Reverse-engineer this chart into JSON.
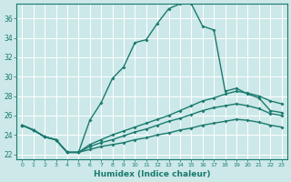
{
  "xlabel": "Humidex (Indice chaleur)",
  "x_ticks": [
    0,
    1,
    2,
    3,
    4,
    5,
    6,
    7,
    8,
    9,
    10,
    11,
    12,
    13,
    14,
    15,
    16,
    17,
    18,
    19,
    20,
    21,
    22,
    23
  ],
  "xlim": [
    -0.5,
    23.5
  ],
  "ylim": [
    21.5,
    37.5
  ],
  "y_ticks": [
    22,
    24,
    26,
    28,
    30,
    32,
    34,
    36
  ],
  "bg_color": "#cce8e8",
  "grid_color": "#b0d4d4",
  "line_color": "#1a7a6e",
  "lines": [
    {
      "x": [
        0,
        1,
        2,
        3,
        4,
        5,
        6,
        7,
        8,
        9,
        10,
        11,
        12,
        13,
        14,
        15,
        16,
        17,
        18,
        19,
        20,
        21,
        22,
        23
      ],
      "y": [
        25.0,
        24.5,
        23.8,
        23.5,
        22.2,
        22.2,
        25.5,
        27.3,
        29.8,
        31.0,
        33.5,
        33.8,
        35.5,
        37.0,
        37.5,
        37.5,
        35.2,
        34.8,
        28.5,
        28.8,
        28.2,
        27.8,
        26.5,
        26.3
      ]
    },
    {
      "x": [
        0,
        1,
        2,
        3,
        4,
        5,
        6,
        7,
        8,
        9,
        10,
        11,
        12,
        13,
        14,
        15,
        16,
        17,
        18,
        19,
        20,
        21,
        22,
        23
      ],
      "y": [
        25.0,
        24.5,
        23.8,
        23.5,
        22.2,
        22.2,
        23.0,
        23.5,
        24.0,
        24.4,
        24.8,
        25.2,
        25.6,
        26.0,
        26.5,
        27.0,
        27.5,
        27.8,
        28.2,
        28.5,
        28.3,
        28.0,
        27.5,
        27.2
      ]
    },
    {
      "x": [
        0,
        1,
        2,
        3,
        4,
        5,
        6,
        7,
        8,
        9,
        10,
        11,
        12,
        13,
        14,
        15,
        16,
        17,
        18,
        19,
        20,
        21,
        22,
        23
      ],
      "y": [
        25.0,
        24.5,
        23.8,
        23.5,
        22.2,
        22.2,
        22.8,
        23.2,
        23.5,
        23.9,
        24.3,
        24.6,
        25.0,
        25.4,
        25.7,
        26.1,
        26.5,
        26.8,
        27.0,
        27.2,
        27.0,
        26.7,
        26.2,
        26.0
      ]
    },
    {
      "x": [
        0,
        1,
        2,
        3,
        4,
        5,
        6,
        7,
        8,
        9,
        10,
        11,
        12,
        13,
        14,
        15,
        16,
        17,
        18,
        19,
        20,
        21,
        22,
        23
      ],
      "y": [
        25.0,
        24.5,
        23.8,
        23.5,
        22.2,
        22.2,
        22.5,
        22.8,
        23.0,
        23.2,
        23.5,
        23.7,
        24.0,
        24.2,
        24.5,
        24.7,
        25.0,
        25.2,
        25.4,
        25.6,
        25.5,
        25.3,
        25.0,
        24.8
      ]
    }
  ]
}
